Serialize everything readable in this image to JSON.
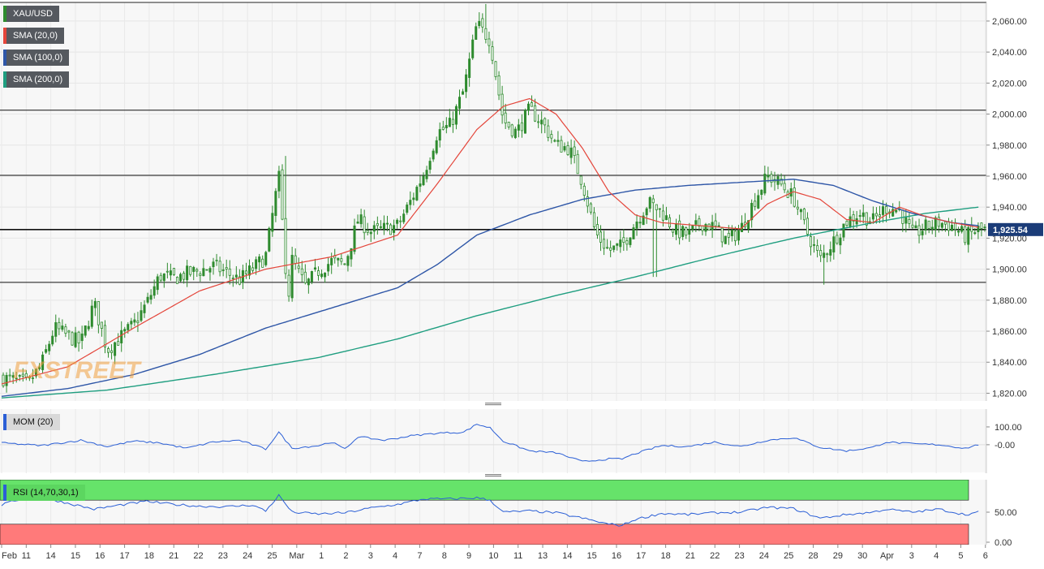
{
  "colors": {
    "candle": "#2e8b2e",
    "sma20": "#e4453a",
    "sma100": "#2e56a7",
    "sma200": "#1f9e80",
    "price_tag": "#1b3c78",
    "mom_line": "#2b5fd6",
    "rsi_line": "#2b5fd6",
    "rsi_overbought": "#66e36a",
    "rsi_oversold": "#ff7a7a",
    "watermark": "#f0a040"
  },
  "legend": {
    "symbol": "XAU/USD",
    "sma20": "SMA (20,0)",
    "sma100": "SMA (100,0)",
    "sma200": "SMA (200,0)",
    "mom": "MOM (20)",
    "rsi": "RSI (14,70,30,1)"
  },
  "watermark": "FXSTREET",
  "chart_data": [
    {
      "type": "candlestick",
      "title": "XAU/USD",
      "y_ticks": [
        "2,060.00",
        "2,040.00",
        "2,020.00",
        "2,000.00",
        "1,980.00",
        "1,960.00",
        "1,940.00",
        "1,920.00",
        "1,900.00",
        "1,880.00",
        "1,860.00",
        "1,840.00",
        "1,820.00"
      ],
      "ylim": [
        1815,
        2072
      ],
      "current_price": 1925.54,
      "current_price_label": "1,925.54",
      "horizontal_levels": [
        2002.5,
        1960.5,
        1925.54,
        1891.5
      ],
      "x_labels": [
        "Feb",
        "11",
        "14",
        "15",
        "16",
        "17",
        "18",
        "21",
        "22",
        "23",
        "24",
        "25",
        "Mar",
        "1",
        "2",
        "3",
        "4",
        "7",
        "8",
        "9",
        "10",
        "11",
        "13",
        "14",
        "15",
        "16",
        "17",
        "18",
        "21",
        "22",
        "23",
        "24",
        "25",
        "28",
        "29",
        "30",
        "Apr",
        "3",
        "4",
        "5",
        "6"
      ],
      "close_anchors": [
        {
          "t": 0,
          "v": 1830
        },
        {
          "t": 2,
          "v": 1826
        },
        {
          "t": 3,
          "v": 1838
        },
        {
          "t": 4,
          "v": 1862
        },
        {
          "t": 6,
          "v": 1852
        },
        {
          "t": 7,
          "v": 1878
        },
        {
          "t": 8,
          "v": 1848
        },
        {
          "t": 9,
          "v": 1856
        },
        {
          "t": 10,
          "v": 1864
        },
        {
          "t": 11,
          "v": 1878
        },
        {
          "t": 12,
          "v": 1896
        },
        {
          "t": 13,
          "v": 1894
        },
        {
          "t": 14,
          "v": 1897
        },
        {
          "t": 15,
          "v": 1899
        },
        {
          "t": 16,
          "v": 1902
        },
        {
          "t": 17,
          "v": 1898
        },
        {
          "t": 18,
          "v": 1893
        },
        {
          "t": 19,
          "v": 1900
        },
        {
          "t": 20,
          "v": 1908
        },
        {
          "t": 21,
          "v": 1960
        },
        {
          "t": 21.7,
          "v": 1880
        },
        {
          "t": 22,
          "v": 1906
        },
        {
          "t": 23,
          "v": 1889
        },
        {
          "t": 24,
          "v": 1899
        },
        {
          "t": 25,
          "v": 1905
        },
        {
          "t": 26,
          "v": 1903
        },
        {
          "t": 27,
          "v": 1932
        },
        {
          "t": 28,
          "v": 1924
        },
        {
          "t": 29,
          "v": 1926
        },
        {
          "t": 30,
          "v": 1928
        },
        {
          "t": 31,
          "v": 1944
        },
        {
          "t": 32,
          "v": 1962
        },
        {
          "t": 33,
          "v": 1988
        },
        {
          "t": 34,
          "v": 1993
        },
        {
          "t": 35,
          "v": 2015
        },
        {
          "t": 36,
          "v": 2058
        },
        {
          "t": 37,
          "v": 2048
        },
        {
          "t": 38,
          "v": 1996
        },
        {
          "t": 39,
          "v": 1988
        },
        {
          "t": 40,
          "v": 2003
        },
        {
          "t": 41,
          "v": 1994
        },
        {
          "t": 42,
          "v": 1980
        },
        {
          "t": 43,
          "v": 1978
        },
        {
          "t": 44,
          "v": 1956
        },
        {
          "t": 45,
          "v": 1923
        },
        {
          "t": 46,
          "v": 1912
        },
        {
          "t": 47,
          "v": 1915
        },
        {
          "t": 48,
          "v": 1930
        },
        {
          "t": 49,
          "v": 1943
        },
        {
          "t": 50,
          "v": 1937
        },
        {
          "t": 51,
          "v": 1925
        },
        {
          "t": 52,
          "v": 1922
        },
        {
          "t": 53,
          "v": 1930
        },
        {
          "t": 54,
          "v": 1927
        },
        {
          "t": 55,
          "v": 1918
        },
        {
          "t": 56,
          "v": 1926
        },
        {
          "t": 57,
          "v": 1944
        },
        {
          "t": 58,
          "v": 1960
        },
        {
          "t": 59,
          "v": 1955
        },
        {
          "t": 60,
          "v": 1946
        },
        {
          "t": 61,
          "v": 1924
        },
        {
          "t": 62,
          "v": 1906
        },
        {
          "t": 63,
          "v": 1918
        },
        {
          "t": 64,
          "v": 1931
        },
        {
          "t": 65,
          "v": 1936
        },
        {
          "t": 66,
          "v": 1931
        },
        {
          "t": 67,
          "v": 1940
        },
        {
          "t": 68,
          "v": 1938
        },
        {
          "t": 69,
          "v": 1922
        },
        {
          "t": 70,
          "v": 1927
        },
        {
          "t": 71,
          "v": 1930
        },
        {
          "t": 72,
          "v": 1928
        },
        {
          "t": 73,
          "v": 1921
        },
        {
          "t": 74,
          "v": 1925.54
        }
      ],
      "candle_count": 300,
      "extreme_wicks": [
        {
          "t": 36.6,
          "high": 2071
        },
        {
          "t": 21.6,
          "high": 1973
        },
        {
          "t": 21.9,
          "low": 1879
        },
        {
          "t": 62.2,
          "low": 1890
        },
        {
          "t": 49.5,
          "low": 1895
        }
      ],
      "sma20": [
        {
          "t": 0,
          "v": 1826
        },
        {
          "t": 5,
          "v": 1837
        },
        {
          "t": 10,
          "v": 1862
        },
        {
          "t": 15,
          "v": 1886
        },
        {
          "t": 20,
          "v": 1900
        },
        {
          "t": 25,
          "v": 1908
        },
        {
          "t": 30,
          "v": 1922
        },
        {
          "t": 33,
          "v": 1955
        },
        {
          "t": 36,
          "v": 1990
        },
        {
          "t": 38,
          "v": 2005
        },
        {
          "t": 40,
          "v": 2010
        },
        {
          "t": 42,
          "v": 2000
        },
        {
          "t": 44,
          "v": 1978
        },
        {
          "t": 46,
          "v": 1950
        },
        {
          "t": 48,
          "v": 1935
        },
        {
          "t": 50,
          "v": 1930
        },
        {
          "t": 53,
          "v": 1928
        },
        {
          "t": 56,
          "v": 1926
        },
        {
          "t": 58,
          "v": 1942
        },
        {
          "t": 60,
          "v": 1950
        },
        {
          "t": 62,
          "v": 1945
        },
        {
          "t": 64,
          "v": 1932
        },
        {
          "t": 66,
          "v": 1930
        },
        {
          "t": 68,
          "v": 1940
        },
        {
          "t": 70,
          "v": 1934
        },
        {
          "t": 72,
          "v": 1930
        },
        {
          "t": 74,
          "v": 1927
        }
      ],
      "sma100": [
        {
          "t": 0,
          "v": 1818
        },
        {
          "t": 5,
          "v": 1823
        },
        {
          "t": 10,
          "v": 1832
        },
        {
          "t": 15,
          "v": 1845
        },
        {
          "t": 20,
          "v": 1862
        },
        {
          "t": 25,
          "v": 1875
        },
        {
          "t": 30,
          "v": 1888
        },
        {
          "t": 33,
          "v": 1903
        },
        {
          "t": 36,
          "v": 1922
        },
        {
          "t": 40,
          "v": 1935
        },
        {
          "t": 44,
          "v": 1945
        },
        {
          "t": 48,
          "v": 1951
        },
        {
          "t": 52,
          "v": 1954
        },
        {
          "t": 56,
          "v": 1956
        },
        {
          "t": 60,
          "v": 1958
        },
        {
          "t": 63,
          "v": 1954
        },
        {
          "t": 66,
          "v": 1944
        },
        {
          "t": 69,
          "v": 1936
        },
        {
          "t": 72,
          "v": 1930
        },
        {
          "t": 74,
          "v": 1928
        }
      ],
      "sma200": [
        {
          "t": 0,
          "v": 1817
        },
        {
          "t": 8,
          "v": 1822
        },
        {
          "t": 16,
          "v": 1832
        },
        {
          "t": 24,
          "v": 1843
        },
        {
          "t": 30,
          "v": 1855
        },
        {
          "t": 36,
          "v": 1870
        },
        {
          "t": 42,
          "v": 1883
        },
        {
          "t": 48,
          "v": 1895
        },
        {
          "t": 54,
          "v": 1908
        },
        {
          "t": 60,
          "v": 1920
        },
        {
          "t": 66,
          "v": 1930
        },
        {
          "t": 70,
          "v": 1936
        },
        {
          "t": 74,
          "v": 1940
        }
      ]
    },
    {
      "type": "line",
      "title": "MOM (20)",
      "y_ticks": [
        "100.00",
        "-0.00"
      ],
      "ylim": [
        -160,
        200
      ],
      "values": [
        {
          "t": 0,
          "v": 10
        },
        {
          "t": 3,
          "v": -5
        },
        {
          "t": 6,
          "v": 25
        },
        {
          "t": 8,
          "v": -10
        },
        {
          "t": 10,
          "v": 20
        },
        {
          "t": 12,
          "v": 10
        },
        {
          "t": 14,
          "v": -20
        },
        {
          "t": 16,
          "v": 15
        },
        {
          "t": 18,
          "v": 25
        },
        {
          "t": 20,
          "v": -25
        },
        {
          "t": 21,
          "v": 70
        },
        {
          "t": 22,
          "v": -20
        },
        {
          "t": 24,
          "v": -5
        },
        {
          "t": 25,
          "v": 15
        },
        {
          "t": 26,
          "v": -25
        },
        {
          "t": 27,
          "v": 45
        },
        {
          "t": 29,
          "v": 25
        },
        {
          "t": 31,
          "v": 50
        },
        {
          "t": 33,
          "v": 65
        },
        {
          "t": 35,
          "v": 70
        },
        {
          "t": 36,
          "v": 115
        },
        {
          "t": 37,
          "v": 95
        },
        {
          "t": 38,
          "v": 20
        },
        {
          "t": 40,
          "v": -35
        },
        {
          "t": 42,
          "v": -45
        },
        {
          "t": 44,
          "v": -95
        },
        {
          "t": 46,
          "v": -80
        },
        {
          "t": 47,
          "v": -80
        },
        {
          "t": 48,
          "v": -50
        },
        {
          "t": 50,
          "v": -5
        },
        {
          "t": 52,
          "v": -10
        },
        {
          "t": 54,
          "v": 15
        },
        {
          "t": 56,
          "v": -10
        },
        {
          "t": 58,
          "v": 25
        },
        {
          "t": 60,
          "v": 40
        },
        {
          "t": 62,
          "v": -15
        },
        {
          "t": 64,
          "v": -35
        },
        {
          "t": 66,
          "v": -15
        },
        {
          "t": 67,
          "v": 15
        },
        {
          "t": 69,
          "v": 5
        },
        {
          "t": 71,
          "v": 0
        },
        {
          "t": 73,
          "v": -20
        },
        {
          "t": 74,
          "v": 0
        }
      ]
    },
    {
      "type": "line",
      "title": "RSI (14,70,30,1)",
      "y_ticks": [
        "50.00",
        "0.00"
      ],
      "ylim": [
        0,
        100
      ],
      "overbought": 70,
      "oversold": 30,
      "values": [
        {
          "t": 0,
          "v": 62
        },
        {
          "t": 2,
          "v": 76
        },
        {
          "t": 4,
          "v": 70
        },
        {
          "t": 7,
          "v": 55
        },
        {
          "t": 9,
          "v": 62
        },
        {
          "t": 11,
          "v": 68
        },
        {
          "t": 13,
          "v": 63
        },
        {
          "t": 15,
          "v": 60
        },
        {
          "t": 17,
          "v": 59
        },
        {
          "t": 19,
          "v": 62
        },
        {
          "t": 20,
          "v": 52
        },
        {
          "t": 21,
          "v": 78
        },
        {
          "t": 22,
          "v": 50
        },
        {
          "t": 24,
          "v": 47
        },
        {
          "t": 26,
          "v": 49
        },
        {
          "t": 28,
          "v": 57
        },
        {
          "t": 30,
          "v": 63
        },
        {
          "t": 32,
          "v": 72
        },
        {
          "t": 34,
          "v": 72
        },
        {
          "t": 36,
          "v": 74
        },
        {
          "t": 37,
          "v": 70
        },
        {
          "t": 38,
          "v": 50
        },
        {
          "t": 40,
          "v": 52
        },
        {
          "t": 42,
          "v": 49
        },
        {
          "t": 44,
          "v": 40
        },
        {
          "t": 46,
          "v": 30
        },
        {
          "t": 47,
          "v": 28
        },
        {
          "t": 48,
          "v": 38
        },
        {
          "t": 50,
          "v": 48
        },
        {
          "t": 52,
          "v": 46
        },
        {
          "t": 54,
          "v": 49
        },
        {
          "t": 56,
          "v": 50
        },
        {
          "t": 58,
          "v": 58
        },
        {
          "t": 60,
          "v": 56
        },
        {
          "t": 62,
          "v": 40
        },
        {
          "t": 64,
          "v": 46
        },
        {
          "t": 66,
          "v": 50
        },
        {
          "t": 67,
          "v": 55
        },
        {
          "t": 69,
          "v": 50
        },
        {
          "t": 71,
          "v": 55
        },
        {
          "t": 73,
          "v": 46
        },
        {
          "t": 74,
          "v": 50
        }
      ]
    }
  ]
}
